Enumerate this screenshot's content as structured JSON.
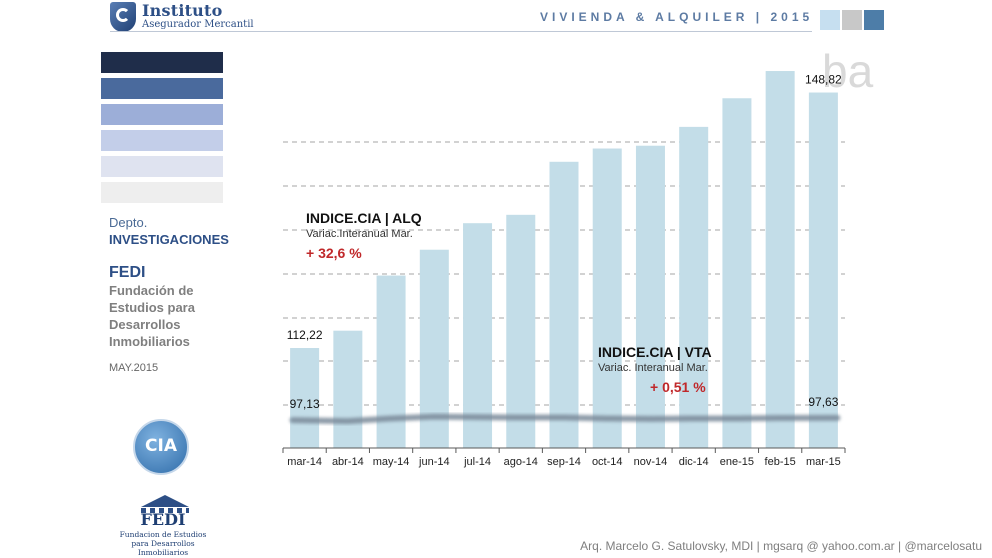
{
  "header": {
    "logo_name": "Instituto",
    "logo_sub": "Asegurador Mercantil",
    "title": "VIVIENDA & ALQUILER | 2015",
    "squares": [
      "#c6dff0",
      "#c8c8c8",
      "#4d7da8"
    ]
  },
  "palette": [
    "#1f2d4a",
    "#4a6a9d",
    "#9caed8",
    "#c3cee9",
    "#dfe3f0",
    "#eeeeee"
  ],
  "corner_text": "ba",
  "sidebar": {
    "depto": "Depto.",
    "investigaciones": "INVESTIGACIONES",
    "fedi": "FEDI",
    "fundacion_lines": [
      "Fundación de",
      "Estudios para",
      "Desarrollos",
      "Inmobiliarios"
    ],
    "date": "MAY.2015",
    "cia_logo": "CIA",
    "fedi_logo_title": "FEDI",
    "fedi_logo_sub_1": "Fundacion de Estudios",
    "fedi_logo_sub_2": "para Desarrollos Inmobiliarios"
  },
  "annotations": {
    "alq": {
      "title": "INDICE.CIA | ALQ",
      "sub": "Variac.Interanual Mar.",
      "value": "+ 32,6 %"
    },
    "vta": {
      "title": "INDICE.CIA | VTA",
      "sub": "Variac. Interanual Mar.",
      "value": "+ 0,51 %"
    }
  },
  "chart_data": {
    "type": "bar",
    "categories": [
      "mar-14",
      "abr-14",
      "may-14",
      "jun-14",
      "jul-14",
      "ago-14",
      "sep-14",
      "oct-14",
      "nov-14",
      "dic-14",
      "ene-15",
      "feb-15",
      "mar-15"
    ],
    "series": [
      {
        "name": "INDICE.CIA | ALQ",
        "type": "bar",
        "color": "#c3dde8",
        "values": [
          112.22,
          114.7,
          122.6,
          126.3,
          130.1,
          131.3,
          138.9,
          140.8,
          141.2,
          143.9,
          148.0,
          151.9,
          148.82
        ]
      },
      {
        "name": "INDICE.CIA | VTA",
        "type": "line",
        "color": "#7a8a9a",
        "values": [
          97.13,
          96.9,
          97.5,
          97.9,
          97.8,
          97.7,
          97.7,
          97.5,
          97.4,
          97.5,
          97.5,
          97.6,
          97.63
        ]
      }
    ],
    "data_labels": [
      {
        "category": "mar-14",
        "text": "112,22"
      },
      {
        "category": "mar-15",
        "text": "148,82"
      },
      {
        "category": "mar-14",
        "text": "97,13"
      },
      {
        "category": "mar-15",
        "text": "97,63"
      }
    ],
    "grid": true
  },
  "footer": "Arq. Marcelo G. Satulovsky, MDI  |  mgsarq @ yahoo.com.ar  |  @marcelosatu"
}
